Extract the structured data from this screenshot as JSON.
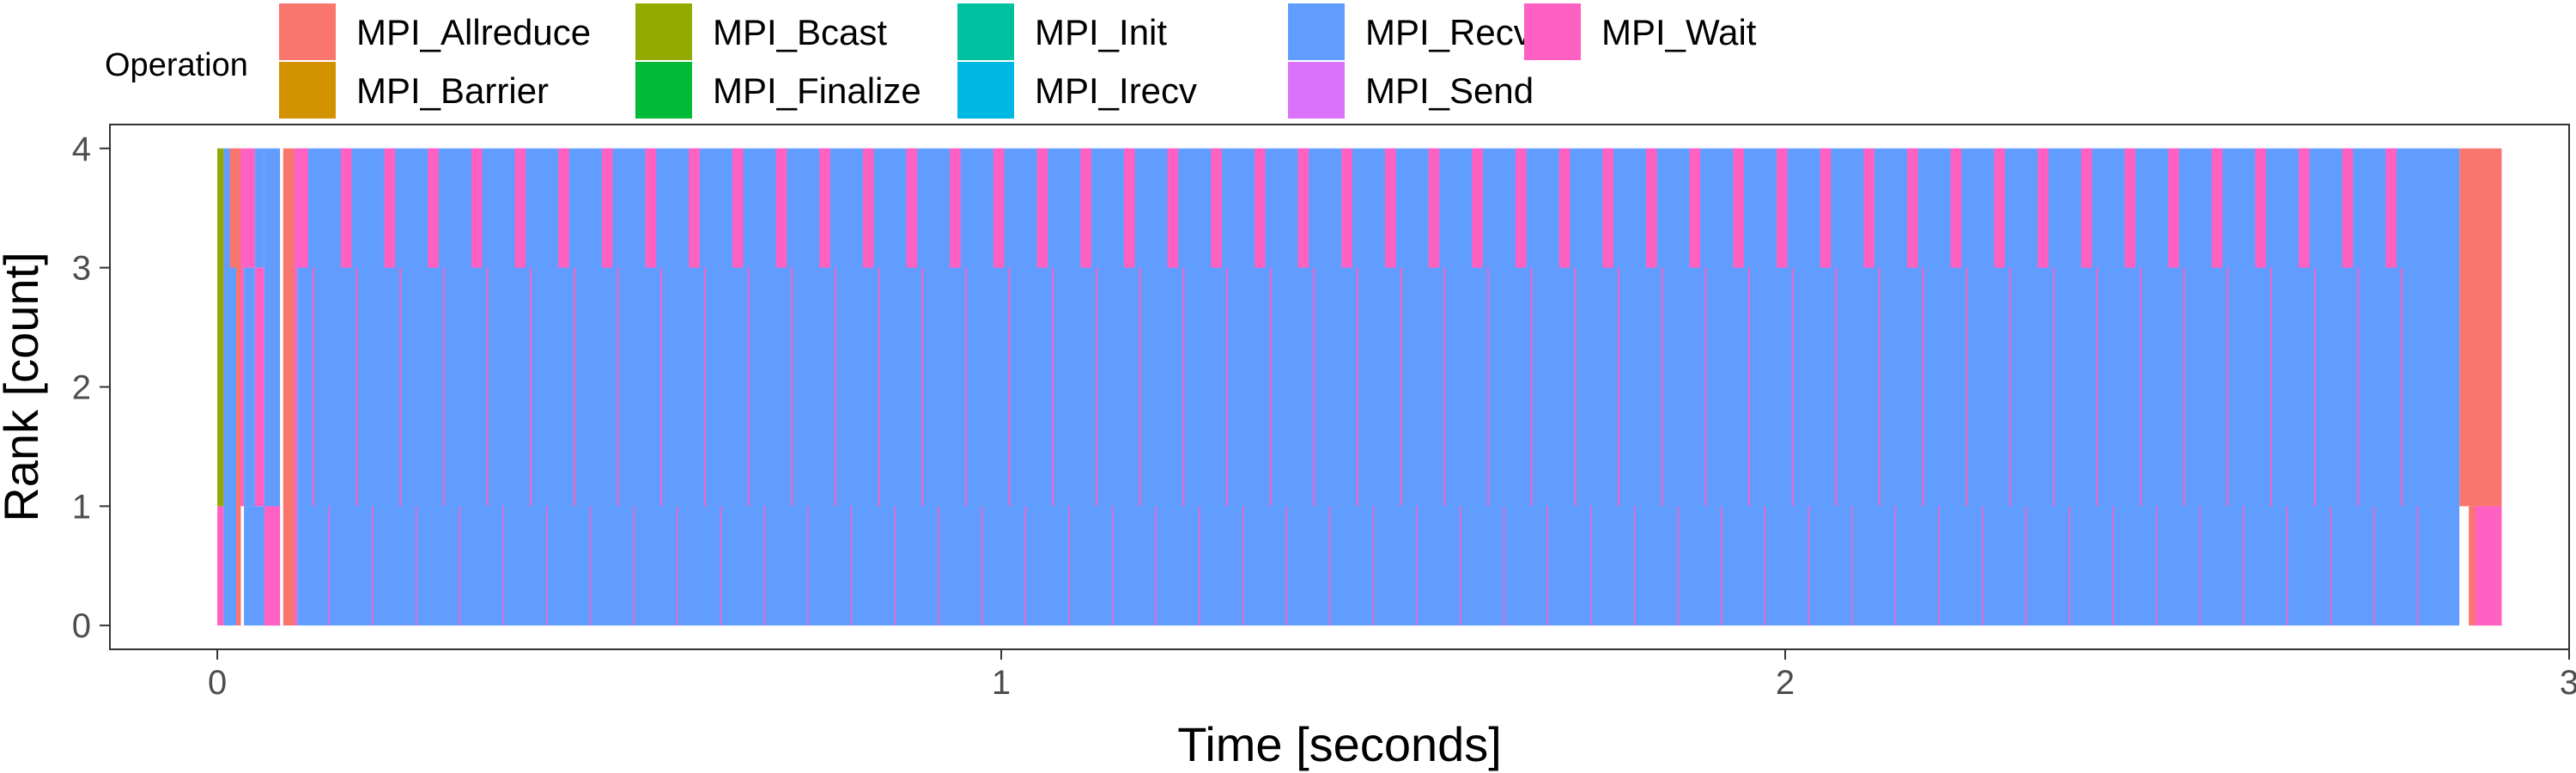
{
  "chart_data": {
    "type": "area",
    "xlabel": "Time [seconds]",
    "ylabel": "Rank [count]",
    "xlim": [
      -0.137,
      3.0
    ],
    "ylim": [
      -0.2,
      4.2
    ],
    "x_ticks": [
      "0",
      "1",
      "2",
      "3"
    ],
    "y_ticks": [
      "0",
      "1",
      "2",
      "3",
      "4"
    ],
    "grid": false,
    "legend": {
      "title": "Operation",
      "placement": "top",
      "entries": [
        {
          "name": "MPI_Allreduce",
          "color": "#F8766D"
        },
        {
          "name": "MPI_Barrier",
          "color": "#D39200"
        },
        {
          "name": "MPI_Bcast",
          "color": "#93AA00"
        },
        {
          "name": "MPI_Finalize",
          "color": "#00BA38"
        },
        {
          "name": "MPI_Init",
          "color": "#00C19F"
        },
        {
          "name": "MPI_Irecv",
          "color": "#00B9E3"
        },
        {
          "name": "MPI_Recv",
          "color": "#619CFF"
        },
        {
          "name": "MPI_Send",
          "color": "#DB72FB"
        },
        {
          "name": "MPI_Wait",
          "color": "#FF61C3"
        }
      ]
    },
    "segments": [
      {
        "op": "MPI_Wait",
        "x0": 0.0,
        "x1": 0.008,
        "y0": 0,
        "y1": 1
      },
      {
        "op": "MPI_Bcast",
        "x0": 0.0,
        "x1": 0.008,
        "y0": 1,
        "y1": 4
      },
      {
        "op": "MPI_Recv",
        "x0": 0.008,
        "x1": 0.026,
        "y0": 0,
        "y1": 4
      },
      {
        "op": "MPI_Allreduce",
        "x0": 0.016,
        "x1": 0.024,
        "y0": 3,
        "y1": 4
      },
      {
        "op": "MPI_Allreduce",
        "x0": 0.024,
        "x1": 0.03,
        "y0": 0,
        "y1": 4
      },
      {
        "op": "MPI_Wait",
        "x0": 0.03,
        "x1": 0.034,
        "y0": 1,
        "y1": 4
      },
      {
        "op": "MPI_Recv",
        "x0": 0.034,
        "x1": 0.06,
        "y0": 0,
        "y1": 1
      },
      {
        "op": "MPI_Recv",
        "x0": 0.034,
        "x1": 0.048,
        "y0": 1,
        "y1": 3
      },
      {
        "op": "MPI_Wait",
        "x0": 0.034,
        "x1": 0.048,
        "y0": 3,
        "y1": 4
      },
      {
        "op": "MPI_Wait",
        "x0": 0.048,
        "x1": 0.06,
        "y0": 1,
        "y1": 3
      },
      {
        "op": "MPI_Recv",
        "x0": 0.048,
        "x1": 0.06,
        "y0": 3,
        "y1": 4
      },
      {
        "op": "MPI_Recv",
        "x0": 0.06,
        "x1": 0.08,
        "y0": 0,
        "y1": 4
      },
      {
        "op": "MPI_Wait",
        "x0": 0.06,
        "x1": 0.08,
        "y0": 0,
        "y1": 1
      },
      {
        "op": "MPI_Allreduce",
        "x0": 0.084,
        "x1": 0.098,
        "y0": 0,
        "y1": 4
      },
      {
        "op": "MPI_Wait",
        "x0": 0.098,
        "x1": 0.102,
        "y0": 0,
        "y1": 4
      },
      {
        "op": "MPI_Allreduce",
        "x0": 2.86,
        "x1": 2.914,
        "y0": 1,
        "y1": 4
      },
      {
        "op": "MPI_Allreduce",
        "x0": 2.872,
        "x1": 2.914,
        "y0": 0,
        "y1": 1
      },
      {
        "op": "MPI_Wait",
        "x0": 2.88,
        "x1": 2.914,
        "y0": 0,
        "y1": 1
      }
    ],
    "pattern": {
      "description_values": {
        "x_start": 0.102,
        "x_end": 2.86,
        "period": 0.0555,
        "wait_fraction": 0.25
      }
    }
  }
}
